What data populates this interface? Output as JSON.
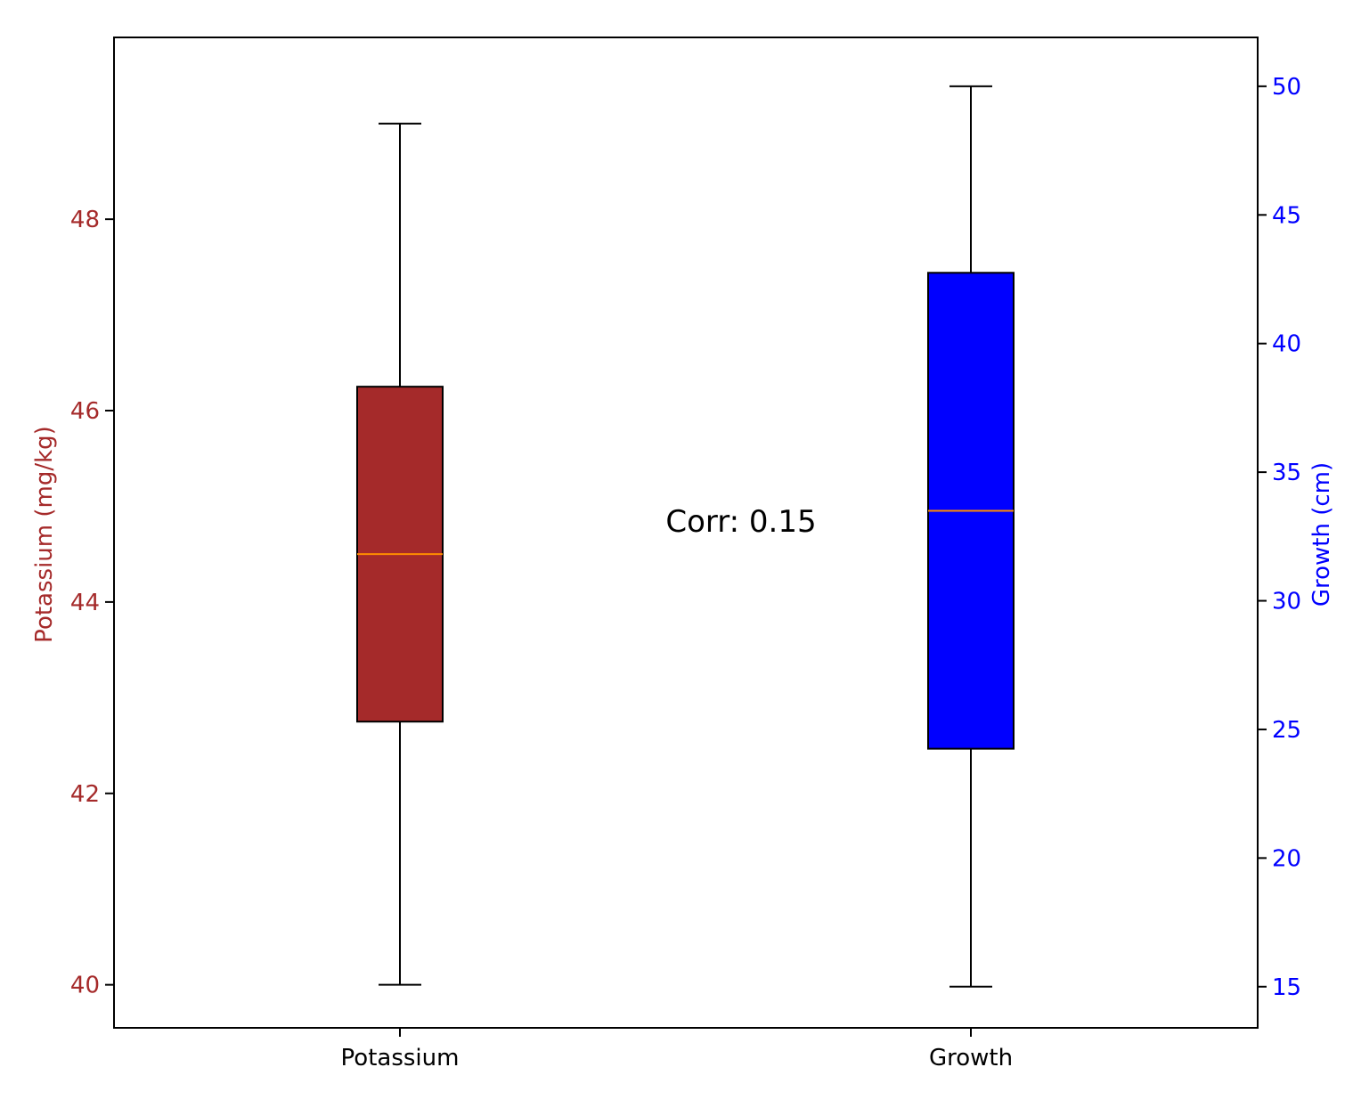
{
  "chart_data": {
    "type": "boxplot",
    "categories": [
      "Potassium",
      "Growth"
    ],
    "annotation": "Corr: 0.15",
    "y_left": {
      "label": "Potassium (mg/kg)",
      "color": "#a52a2a",
      "ticks": [
        40,
        42,
        44,
        46,
        48
      ],
      "range": [
        39.55,
        49.9
      ]
    },
    "y_right": {
      "label": "Growth (cm)",
      "color": "#0000ff",
      "ticks": [
        15,
        20,
        25,
        30,
        35,
        40,
        45,
        50
      ],
      "range": [
        13.4,
        51.9
      ]
    },
    "series": [
      {
        "name": "Potassium",
        "axis": "left",
        "fill": "#a52a2a",
        "min": 40.0,
        "q1": 42.75,
        "median": 44.5,
        "q3": 46.25,
        "max": 49.0
      },
      {
        "name": "Growth",
        "axis": "right",
        "fill": "#0000ff",
        "min": 15.0,
        "q1": 24.25,
        "median": 33.5,
        "q3": 42.75,
        "max": 50.0
      }
    ],
    "median_color": "#ff8c00",
    "grid": false
  }
}
